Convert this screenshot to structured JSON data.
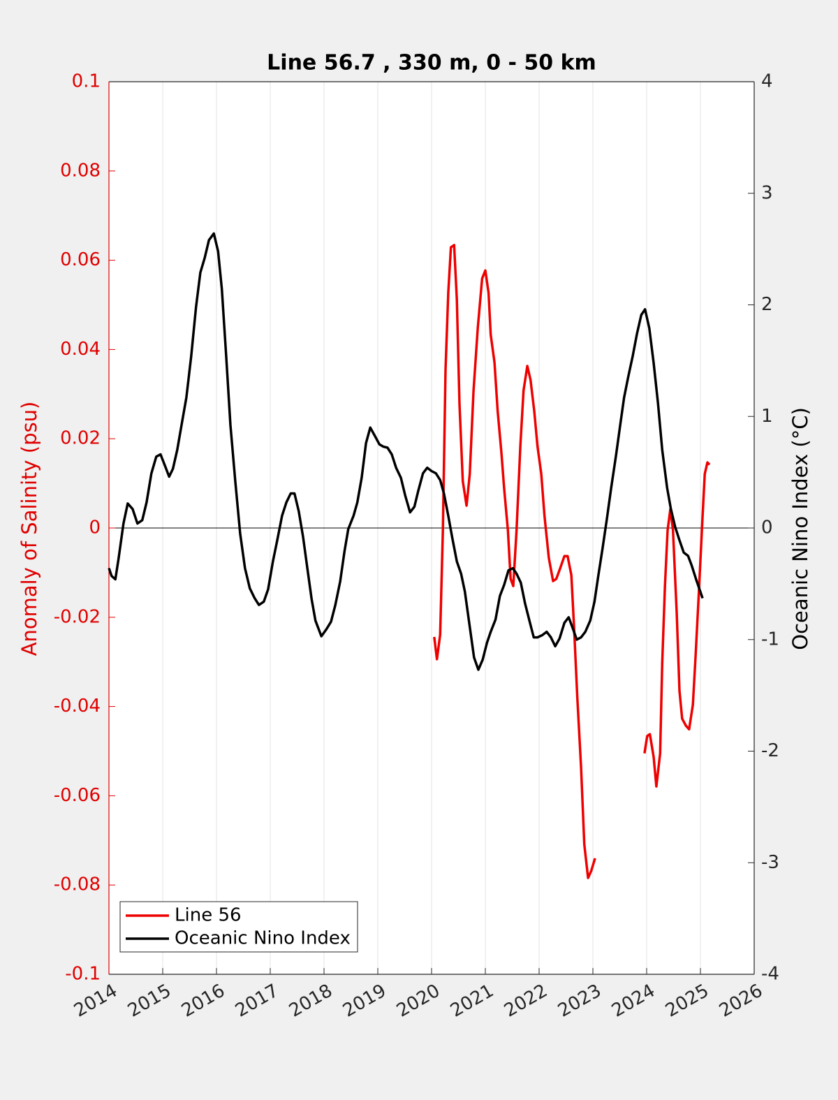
{
  "chart_data": {
    "type": "line",
    "title": "Line 56.7 , 330 m, 0 - 50 km",
    "ylabel": "Anomaly of Salinity (psu)",
    "y2label": "Oceanic Nino Index (°C)",
    "ycolor": "#e00000",
    "xlim": [
      2014,
      2026
    ],
    "xticks": [
      2014,
      2015,
      2016,
      2017,
      2018,
      2019,
      2020,
      2021,
      2022,
      2023,
      2024,
      2025,
      2026
    ],
    "ylim": [
      -0.1,
      0.1
    ],
    "yticks": [
      -0.1,
      -0.08,
      -0.06,
      -0.04,
      -0.02,
      0,
      0.02,
      0.04,
      0.06,
      0.08,
      0.1
    ],
    "y2lim": [
      -4,
      4
    ],
    "y2ticks": [
      -4,
      -3,
      -2,
      -1,
      0,
      1,
      2,
      3,
      4
    ],
    "xgrid": true,
    "zero_line": true,
    "legend": "lower left",
    "series": [
      {
        "name": "Line 56",
        "color": "#ee0000",
        "axis": "y",
        "x": [
          2020.05,
          2020.1,
          2020.16,
          2020.21,
          2020.26,
          2020.31,
          2020.36,
          2020.42,
          2020.47,
          2020.52,
          2020.58,
          2020.65,
          2020.71,
          2020.78,
          2020.86,
          2020.94,
          2021.0,
          2021.06,
          2021.1,
          2021.17,
          2021.23,
          2021.3,
          2021.35,
          2021.42,
          2021.47,
          2021.52,
          2021.58,
          2021.65,
          2021.71,
          2021.78,
          2021.84,
          2021.91,
          2021.97,
          2022.04,
          2022.1,
          2022.18,
          2022.26,
          2022.32,
          2022.39,
          2022.47,
          2022.53,
          2022.6,
          2022.65,
          2022.71,
          2022.78,
          2022.84,
          2022.91,
          2022.97,
          2023.04,
          2023.5,
          2023.96,
          2024.01,
          2024.06,
          2024.13,
          2024.18,
          2024.25,
          2024.29,
          2024.34,
          2024.39,
          2024.44,
          2024.49,
          2024.56,
          2024.61,
          2024.66,
          2024.73,
          2024.79,
          2024.86,
          2024.91,
          2024.97,
          2025.04,
          2025.08,
          2025.13,
          2025.17
        ],
        "values": [
          -0.0244,
          -0.0294,
          -0.0239,
          -0.0005,
          0.0355,
          0.0527,
          0.0629,
          0.0634,
          0.0512,
          0.0277,
          0.0105,
          0.005,
          0.0121,
          0.0308,
          0.0449,
          0.0559,
          0.0577,
          0.0527,
          0.0433,
          0.0371,
          0.0261,
          0.0167,
          0.0089,
          -0.0005,
          -0.0114,
          -0.013,
          -0.0005,
          0.0183,
          0.0308,
          0.0363,
          0.0332,
          0.0261,
          0.0183,
          0.0121,
          0.0027,
          -0.0067,
          -0.0119,
          -0.0114,
          -0.0091,
          -0.0063,
          -0.0063,
          -0.0106,
          -0.0224,
          -0.038,
          -0.0537,
          -0.0709,
          -0.0784,
          -0.0768,
          -0.074,
          null,
          -0.0505,
          -0.0466,
          -0.0462,
          -0.0513,
          -0.0579,
          -0.0505,
          -0.0302,
          -0.013,
          -0.0005,
          0.0042,
          -0.0005,
          -0.0192,
          -0.0365,
          -0.0427,
          -0.0443,
          -0.0451,
          -0.0396,
          -0.0286,
          -0.0146,
          0.0027,
          0.0121,
          0.0147,
          0.0142
        ]
      },
      {
        "name": "Oceanic Nino Index",
        "color": "#000000",
        "axis": "y2",
        "x": [
          2014.0,
          2014.05,
          2014.12,
          2014.18,
          2014.27,
          2014.35,
          2014.44,
          2014.53,
          2014.62,
          2014.7,
          2014.79,
          2014.88,
          2014.96,
          2015.04,
          2015.12,
          2015.19,
          2015.27,
          2015.35,
          2015.44,
          2015.53,
          2015.62,
          2015.7,
          2015.78,
          2015.86,
          2015.95,
          2016.03,
          2016.1,
          2016.18,
          2016.26,
          2016.35,
          2016.44,
          2016.53,
          2016.62,
          2016.71,
          2016.79,
          2016.88,
          2016.96,
          2017.05,
          2017.13,
          2017.22,
          2017.3,
          2017.38,
          2017.45,
          2017.53,
          2017.61,
          2017.69,
          2017.77,
          2017.84,
          2017.95,
          2018.04,
          2018.13,
          2018.21,
          2018.3,
          2018.38,
          2018.45,
          2018.55,
          2018.62,
          2018.7,
          2018.78,
          2018.86,
          2018.94,
          2019.03,
          2019.1,
          2019.18,
          2019.26,
          2019.34,
          2019.43,
          2019.51,
          2019.6,
          2019.68,
          2019.75,
          2019.84,
          2019.92,
          2020.0,
          2020.08,
          2020.16,
          2020.23,
          2020.31,
          2020.39,
          2020.47,
          2020.55,
          2020.62,
          2020.7,
          2020.79,
          2020.87,
          2020.95,
          2021.03,
          2021.1,
          2021.19,
          2021.27,
          2021.35,
          2021.43,
          2021.51,
          2021.58,
          2021.66,
          2021.74,
          2021.82,
          2021.9,
          2021.97,
          2022.06,
          2022.14,
          2022.22,
          2022.3,
          2022.38,
          2022.47,
          2022.55,
          2022.62,
          2022.7,
          2022.78,
          2022.86,
          2022.95,
          2023.03,
          2023.1,
          2023.18,
          2023.26,
          2023.34,
          2023.43,
          2023.51,
          2023.58,
          2023.66,
          2023.74,
          2023.82,
          2023.9,
          2023.97,
          2024.05,
          2024.13,
          2024.21,
          2024.29,
          2024.38,
          2024.45,
          2024.53,
          2024.61,
          2024.69,
          2024.77,
          2024.84,
          2024.92,
          2025.04
        ],
        "values": [
          -0.36,
          -0.43,
          -0.46,
          -0.27,
          0.04,
          0.22,
          0.17,
          0.04,
          0.07,
          0.23,
          0.49,
          0.64,
          0.66,
          0.56,
          0.46,
          0.53,
          0.7,
          0.92,
          1.17,
          1.54,
          1.98,
          2.29,
          2.42,
          2.58,
          2.64,
          2.48,
          2.14,
          1.54,
          0.92,
          0.42,
          -0.05,
          -0.36,
          -0.54,
          -0.63,
          -0.69,
          -0.66,
          -0.55,
          -0.3,
          -0.11,
          0.11,
          0.23,
          0.31,
          0.31,
          0.15,
          -0.08,
          -0.36,
          -0.64,
          -0.83,
          -0.97,
          -0.91,
          -0.84,
          -0.69,
          -0.48,
          -0.21,
          -0.01,
          0.11,
          0.23,
          0.45,
          0.76,
          0.9,
          0.83,
          0.75,
          0.73,
          0.72,
          0.66,
          0.54,
          0.45,
          0.29,
          0.14,
          0.19,
          0.33,
          0.49,
          0.54,
          0.51,
          0.49,
          0.43,
          0.31,
          0.11,
          -0.1,
          -0.3,
          -0.41,
          -0.57,
          -0.85,
          -1.16,
          -1.27,
          -1.18,
          -1.03,
          -0.93,
          -0.82,
          -0.61,
          -0.51,
          -0.38,
          -0.36,
          -0.41,
          -0.49,
          -0.68,
          -0.83,
          -0.98,
          -0.98,
          -0.96,
          -0.93,
          -0.98,
          -1.06,
          -0.99,
          -0.85,
          -0.8,
          -0.89,
          -1.0,
          -0.98,
          -0.93,
          -0.83,
          -0.66,
          -0.43,
          -0.18,
          0.08,
          0.36,
          0.65,
          0.93,
          1.17,
          1.36,
          1.54,
          1.74,
          1.91,
          1.96,
          1.79,
          1.48,
          1.12,
          0.7,
          0.36,
          0.17,
          0.01,
          -0.11,
          -0.22,
          -0.25,
          -0.34,
          -0.46,
          -0.63
        ]
      }
    ]
  }
}
